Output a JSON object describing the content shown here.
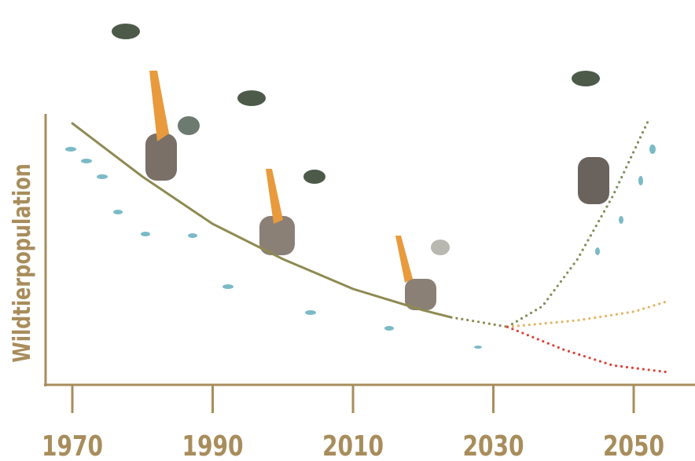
{
  "chart_data": {
    "type": "line",
    "y_label": "Wildtierpopulation",
    "xlim": [
      1966,
      2058.5
    ],
    "xticks": [
      1970,
      1990,
      2010,
      2030,
      2050
    ],
    "ylim": [
      0,
      100
    ],
    "axis_color": "#a88d5c",
    "series": [
      {
        "color": "#8e8a52",
        "style": "solid",
        "x": [
          1970,
          1980,
          1990,
          2000,
          2010,
          2020,
          2024
        ],
        "values": [
          96.5,
          76.8,
          59.4,
          46.4,
          35.4,
          27.5,
          24.9
        ]
      },
      {
        "color": "#8e8a52",
        "style": "dotted",
        "x": [
          2024,
          2028,
          2032
        ],
        "values": [
          24.9,
          23.2,
          21.4
        ]
      },
      {
        "color": "#7f8f5a",
        "style": "dotted",
        "x": [
          2032,
          2037,
          2042,
          2047,
          2052
        ],
        "values": [
          21.4,
          29,
          46.4,
          69.6,
          97.1
        ]
      },
      {
        "color": "#e2b566",
        "style": "dotted",
        "x": [
          2032,
          2042,
          2050,
          2055
        ],
        "values": [
          21.4,
          23.8,
          27,
          31
        ]
      },
      {
        "color": "#d9453a",
        "style": "dotted",
        "x": [
          2032,
          2040,
          2047,
          2055
        ],
        "values": [
          21.4,
          13,
          7.2,
          4.6
        ]
      }
    ]
  }
}
